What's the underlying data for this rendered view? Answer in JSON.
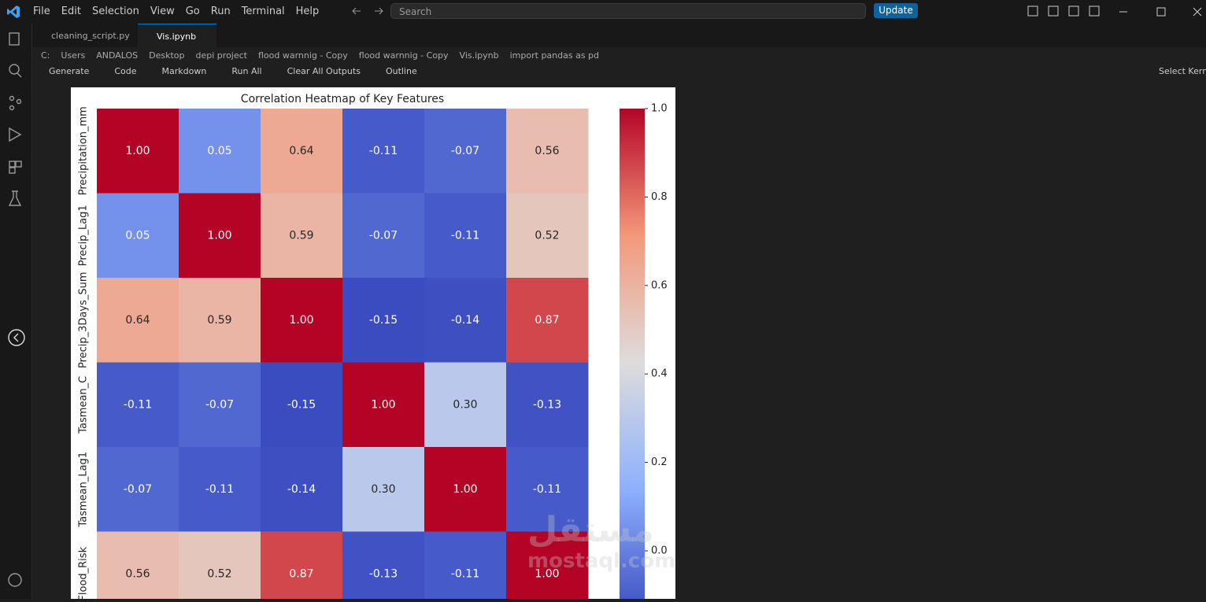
{
  "menu": [
    "File",
    "Edit",
    "Selection",
    "View",
    "Go",
    "Run",
    "Terminal",
    "Help"
  ],
  "search": "Search",
  "update_button": "Update",
  "tabs": [
    "cleaning_script.py",
    "Vis.ipynb"
  ],
  "breadcrumbs": [
    "C:",
    "Users",
    "ANDALOS",
    "Desktop",
    "depi project",
    "flood warnnig - Copy",
    "flood warnnig - Copy",
    "Vis.ipynb",
    "import pandas as pd"
  ],
  "toolbar": [
    "Generate",
    "Code",
    "Markdown",
    "Run All",
    "Clear All Outputs",
    "Outline"
  ],
  "kernel": "Select Kernel",
  "watermark": [
    "مستقل",
    "mostaql.com"
  ],
  "chart_data": {
    "type": "heatmap",
    "title": "Correlation Heatmap of Key Features",
    "y_categories": [
      "Precipitation_mm",
      "Precip_Lag1",
      "Precip_3Days_Sum",
      "Tasmean_C",
      "Tasmean_Lag1",
      "Flood_Risk"
    ],
    "values": [
      [
        1.0,
        0.05,
        0.64,
        -0.11,
        -0.07,
        0.56
      ],
      [
        0.05,
        1.0,
        0.59,
        -0.07,
        -0.11,
        0.52
      ],
      [
        0.64,
        0.59,
        1.0,
        -0.15,
        -0.14,
        0.87
      ],
      [
        -0.11,
        -0.07,
        -0.15,
        1.0,
        0.3,
        -0.13
      ],
      [
        -0.07,
        -0.11,
        -0.14,
        0.3,
        1.0,
        -0.11
      ],
      [
        0.56,
        0.52,
        0.87,
        -0.13,
        -0.11,
        1.0
      ]
    ],
    "value_labels": [
      [
        "1.00",
        "0.05",
        "0.64",
        "-0.11",
        "-0.07",
        "0.56"
      ],
      [
        "0.05",
        "1.00",
        "0.59",
        "-0.07",
        "-0.11",
        "0.52"
      ],
      [
        "0.64",
        "0.59",
        "1.00",
        "-0.15",
        "-0.14",
        "0.87"
      ],
      [
        "-0.11",
        "-0.07",
        "-0.15",
        "1.00",
        "0.30",
        "-0.13"
      ],
      [
        "-0.07",
        "-0.11",
        "-0.14",
        "0.30",
        "1.00",
        "-0.11"
      ],
      [
        "0.56",
        "0.52",
        "0.87",
        "-0.13",
        "-0.11",
        "1.00"
      ]
    ],
    "colormap": "coolwarm",
    "clim": [
      -0.15,
      1.0
    ],
    "cticks": [
      {
        "value": 0,
        "label": "0.0"
      },
      0.2,
      0.4,
      0.6,
      0.8,
      {
        "value": 1,
        "label": "1.0"
      }
    ]
  }
}
